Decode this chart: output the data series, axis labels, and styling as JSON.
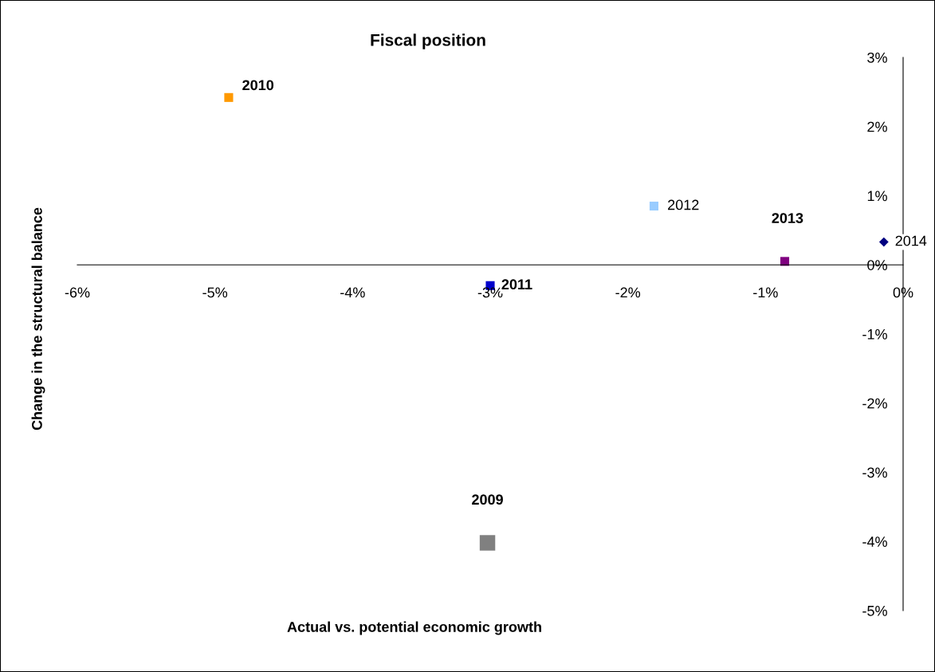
{
  "chart_data": {
    "type": "scatter",
    "title": "Fiscal position",
    "xlabel": "Actual vs. potential economic growth",
    "ylabel": "Change in the structural balance",
    "series": [
      {
        "name": "2010",
        "color": "#ff9900",
        "x": [
          -4.9
        ],
        "values": [
          2.42
        ],
        "marker": "square"
      },
      {
        "name": "2012",
        "color": "#99ccff",
        "x": [
          -1.81
        ],
        "values": [
          0.85
        ],
        "marker": "square"
      },
      {
        "name": "2013",
        "color": "#800080",
        "x": [
          -0.86
        ],
        "values": [
          0.05
        ],
        "marker": "square"
      },
      {
        "name": "2014",
        "color": "#000080",
        "x": [
          -0.14
        ],
        "values": [
          0.33
        ],
        "marker": "diamond"
      },
      {
        "name": "2011",
        "color": "#0000cc",
        "x": [
          -3.0
        ],
        "values": [
          -0.3
        ],
        "marker": "square"
      },
      {
        "name": "2009",
        "color": "#808080",
        "x": [
          -3.02
        ],
        "values": [
          -4.02
        ],
        "marker": "square"
      }
    ],
    "xlim": [
      -6,
      0
    ],
    "ylim": [
      -5,
      3
    ],
    "xticks": [
      {
        "value": -6,
        "label": "-6%"
      },
      {
        "value": -5,
        "label": "-5%"
      },
      {
        "value": -4,
        "label": "-4%"
      },
      {
        "value": -3,
        "label": "-3%"
      },
      {
        "value": -2,
        "label": "-2%"
      },
      {
        "value": -1,
        "label": "-1%"
      },
      {
        "value": 0,
        "label": "0%"
      }
    ],
    "yticks": [
      {
        "value": 3,
        "label": "3%"
      },
      {
        "value": 2,
        "label": "2%"
      },
      {
        "value": 1,
        "label": "1%"
      },
      {
        "value": 0,
        "label": "0%"
      },
      {
        "value": -1,
        "label": "-1%"
      },
      {
        "value": -2,
        "label": "-2%"
      },
      {
        "value": -3,
        "label": "-3%"
      },
      {
        "value": -4,
        "label": "-4%"
      },
      {
        "value": -5,
        "label": "-5%"
      }
    ],
    "grid": false,
    "legend": false
  }
}
